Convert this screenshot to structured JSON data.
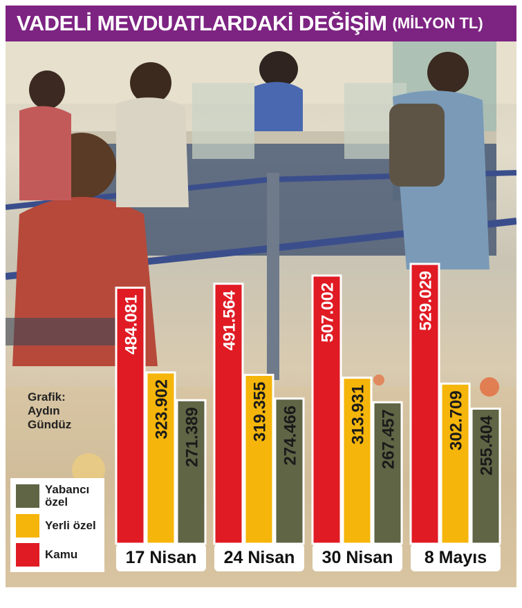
{
  "title": {
    "main": "VADELİ MEVDUATLARDAKİ DEĞİŞİM",
    "unit": "(MİLYON TL)"
  },
  "credit": {
    "line1": "Grafik:",
    "line2": "Aydın",
    "line3": "Gündüz"
  },
  "legend": [
    {
      "label": "Yabancı özel",
      "color": "#5f6545"
    },
    {
      "label": "Yerli özel",
      "color": "#f5b50a"
    },
    {
      "label": "Kamu",
      "color": "#e01b24"
    }
  ],
  "chart_data": {
    "type": "bar",
    "categories": [
      "17 Nisan",
      "24 Nisan",
      "30 Nisan",
      "8 Mayıs"
    ],
    "series": [
      {
        "name": "Kamu",
        "color": "#e01b24",
        "values": [
          484.081,
          491.564,
          507.002,
          529.029
        ],
        "labels": [
          "484.081",
          "491.564",
          "507.002",
          "529.029"
        ]
      },
      {
        "name": "Yerli özel",
        "color": "#f5b50a",
        "values": [
          323.902,
          319.355,
          313.931,
          302.709
        ],
        "labels": [
          "323.902",
          "319.355",
          "313.931",
          "302.709"
        ]
      },
      {
        "name": "Yabancı özel",
        "color": "#5f6545",
        "values": [
          271.389,
          274.466,
          267.457,
          255.404
        ],
        "labels": [
          "271.389",
          "274.466",
          "267.457",
          "255.404"
        ]
      }
    ],
    "title": "VADELİ MEVDUATLARDAKİ DEĞİŞİM (MİLYON TL)",
    "ylabel": "",
    "xlabel": "",
    "grid": false,
    "legend_position": "bottom-left"
  }
}
